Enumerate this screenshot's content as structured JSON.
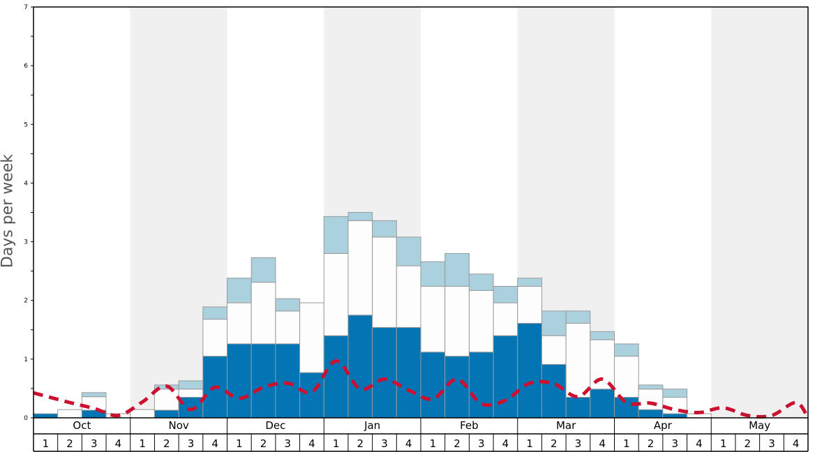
{
  "chart_data": {
    "type": "bar",
    "stacked": true,
    "ylabel": "Days per week",
    "ylim": [
      0,
      7
    ],
    "yticks": [
      0,
      1,
      2,
      3,
      4,
      5,
      6,
      7
    ],
    "grid": false,
    "months": [
      "Oct",
      "Nov",
      "Dec",
      "Jan",
      "Feb",
      "Mar",
      "Apr",
      "May"
    ],
    "week_labels": [
      "1",
      "2",
      "3",
      "4"
    ],
    "colors": {
      "dark": "#0374b4",
      "white": "#fdfdfd",
      "light": "#abd1de",
      "line": "#cc1030",
      "shade": "#f0f0f0"
    },
    "series": [
      {
        "values": [
          0.07,
          0,
          0.13,
          0,
          0,
          0.13,
          0.35,
          1.05,
          1.26,
          1.26,
          1.26,
          0.77,
          1.4,
          1.75,
          1.54,
          1.54,
          1.12,
          1.05,
          1.12,
          1.4,
          1.61,
          0.91,
          0.35,
          0.49,
          0.35,
          0.14,
          0.07,
          0,
          0,
          0,
          0,
          0
        ]
      },
      {
        "values": [
          0,
          0.14,
          0.23,
          0.07,
          0.14,
          0.36,
          0.14,
          0.63,
          0.7,
          1.05,
          0.56,
          1.19,
          1.4,
          1.61,
          1.54,
          1.05,
          1.12,
          1.19,
          1.05,
          0.56,
          0.63,
          0.49,
          1.26,
          0.84,
          0.7,
          0.35,
          0.28,
          0.07,
          0,
          0,
          0,
          0
        ]
      },
      {
        "values": [
          0,
          0,
          0.07,
          0,
          0,
          0.07,
          0.14,
          0.21,
          0.42,
          0.42,
          0.21,
          0,
          0.63,
          0.14,
          0.28,
          0.49,
          0.42,
          0.56,
          0.28,
          0.28,
          0.14,
          0.42,
          0.21,
          0.14,
          0.21,
          0.07,
          0.14,
          0,
          0,
          0,
          0,
          0
        ]
      },
      {
        "type": "line",
        "style": "dashed",
        "values": [
          0.37,
          0.26,
          0.16,
          0.04,
          0.27,
          0.54,
          0.14,
          0.52,
          0.33,
          0.52,
          0.59,
          0.44,
          0.97,
          0.49,
          0.66,
          0.47,
          0.32,
          0.66,
          0.24,
          0.3,
          0.59,
          0.58,
          0.36,
          0.66,
          0.26,
          0.25,
          0.14,
          0.09,
          0.17,
          0.04,
          0.04,
          0.26
        ]
      }
    ]
  }
}
